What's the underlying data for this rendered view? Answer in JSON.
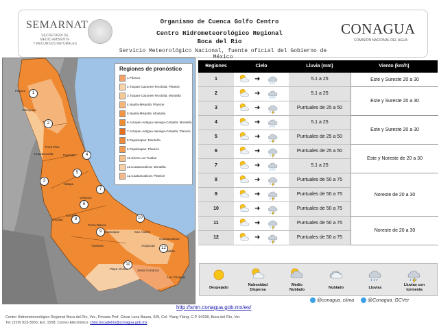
{
  "header": {
    "semarnat": "SEMARNAT",
    "semarnat_sub1": "SECRETARÍA DE",
    "semarnat_sub2": "MEDIO AMBIENTE",
    "semarnat_sub3": "Y RECURSOS NATURALES",
    "line1": "Organismo de Cuenca Golfo Centro",
    "line2": "Centro Hidrometeorológico Regional",
    "line3": "Boca del Río",
    "service1": "Servicio Meteorológico Nacional, fuente oficial del Gobierno de",
    "service2": "México",
    "conagua": "CONAGUA",
    "conagua_sub": "COMISIÓN NACIONAL DEL AGUA"
  },
  "legend": {
    "title": "Regiones de pronóstico",
    "items": [
      {
        "label": "1.Pánuco",
        "color": "#f3a36a"
      },
      {
        "label": "2.Tuxpan-Cazones-Tecolutla: Planicie",
        "color": "#f8d4a8"
      },
      {
        "label": "3.Tuxpan-Cazones-Tecolutla: Montaña",
        "color": "#f7c995"
      },
      {
        "label": "4.Nautla-Misantla: Planicie",
        "color": "#f6b67a"
      },
      {
        "label": "5.Nautla-Misantla: Montaña",
        "color": "#f19443"
      },
      {
        "label": "6.Actopan-Antigua-Jamapa-Cotaxtla: Montaña",
        "color": "#ee8c32"
      },
      {
        "label": "7.Actopan-Antigua-Jamapa-Cotaxtla: Planicie",
        "color": "#e86f1e"
      },
      {
        "label": "8.Papaloapan: Montaña",
        "color": "#f08a3a"
      },
      {
        "label": "9.Papaloapan: Planicie",
        "color": "#f29a4e"
      },
      {
        "label": "10.Sierra Los Tuxtlas",
        "color": "#f5c08a"
      },
      {
        "label": "11.Coatzacoalcos: Montaña",
        "color": "#f7cfa6"
      },
      {
        "label": "12.Coatzacoalcos: Planicie",
        "color": "#f4b98a"
      }
    ]
  },
  "map_labels": {
    "panuco": "Panuco",
    "tuxpan": "Tuxpan",
    "tantoyuca": "Tantoyuca",
    "poza_rica": "Poza Rica",
    "papantla": "Papantla",
    "huayacocotla": "Huayacocotla",
    "xalapa": "Xalapa",
    "veracruz": "Veracruz",
    "orizaba": "Orizaba",
    "cordoba": "Córdoba",
    "tierra_blanca": "Tierra Blanca",
    "cosamaloapan": "Cosamaloapan",
    "tuxtepec": "Tuxtepec",
    "san_andres": "San Andrés",
    "acayucan": "Acayucan",
    "coatzacoalcos": "Coatzacoalcos",
    "minatitlan": "Minatitlán",
    "las_choapas": "Las Choapas",
    "jesus_carranza": "Jesús Carranza",
    "playa_vicente": "Playa Vicente"
  },
  "table": {
    "headers": [
      "Regiones",
      "Cielo",
      "Lluvia (mm)",
      "Viento (km/h)"
    ],
    "rows": [
      {
        "region": "1",
        "sky_from": "sunny-partly-cloudy",
        "sky_to": "rain",
        "rain": "5.1 a 25"
      },
      {
        "region": "2",
        "sky_from": "sunny-partly-cloudy",
        "sky_to": "rain",
        "rain": "5.1 a 25"
      },
      {
        "region": "3",
        "sky_from": "sunny-partly-cloudy",
        "sky_to": "storm",
        "rain": "Puntuales de 25 a 50"
      },
      {
        "region": "4",
        "sky_from": "sunny-partly-cloudy",
        "sky_to": "rain",
        "rain": "5.1 a 25"
      },
      {
        "region": "5",
        "sky_from": "sunny-partly-cloudy",
        "sky_to": "storm",
        "rain": "Puntuales de 25 a 50"
      },
      {
        "region": "6",
        "sky_from": "sunny-partly-cloudy",
        "sky_to": "storm",
        "rain": "Puntuales de 25 a 50"
      },
      {
        "region": "7",
        "sky_from": "sunny-partly-cloudy",
        "sky_to": "rain",
        "rain": "5.1 a 25"
      },
      {
        "region": "8",
        "sky_from": "sunny-partly-cloudy",
        "sky_to": "storm",
        "rain": "Puntuales de 50 a 75"
      },
      {
        "region": "9",
        "sky_from": "sunny-partly-cloudy",
        "sky_to": "storm",
        "rain": "Puntuales de 50 a 75"
      },
      {
        "region": "10",
        "sky_from": "sunny-partly-cloudy",
        "sky_to": "storm",
        "rain": "Puntuales de 50 a 75"
      },
      {
        "region": "11",
        "sky_from": "sunny-partly-cloudy",
        "sky_to": "storm",
        "rain": "Puntuales de 50 a 75"
      },
      {
        "region": "12",
        "sky_from": "sunny-partly-cloudy",
        "sky_to": "storm",
        "rain": "Puntuales de 50 a 75"
      }
    ],
    "wind_groups": [
      {
        "label": "Este y Sureste 20 a 30"
      },
      {
        "label": "Este y Sureste 20 a 30"
      },
      {
        "label": "Este y Sureste 20 a 30"
      },
      {
        "label": "Este y Noreste de 20 a 30"
      },
      {
        "label": "Noreste de 20 a 30"
      },
      {
        "label": "Noreste de 20 a 30"
      }
    ]
  },
  "icon_legend": [
    {
      "label1": "Despejado",
      "label2": "",
      "icon": "sun-icon"
    },
    {
      "label1": "Nubosidad",
      "label2": "Dispersa",
      "icon": "scattered-clouds-icon"
    },
    {
      "label1": "Medio",
      "label2": "Nublado",
      "icon": "partly-cloudy-icon"
    },
    {
      "label1": "Nublado",
      "label2": "",
      "icon": "cloudy-icon"
    },
    {
      "label1": "Lluvias",
      "label2": "",
      "icon": "rain-icon"
    },
    {
      "label1": "Lluvias con",
      "label2": "tormenta",
      "icon": "storm-icon"
    }
  ],
  "footer": {
    "url": "http://smn.conagua.gob.mx/es/",
    "social1": "@conagua_clima",
    "social2": "@Conagua_GCVer",
    "address1": "Centro Hidrometeorológico Regional Boca del Río, Ver., Privada Prof. César Luna Bauza, S/N, Col. Ylang Ylang, C.P. 94298, Boca del Río, Ver.",
    "address2": "Tel: (229) 923-3950, Ext. 1558, Correo Electrónico: ",
    "email": "chmr.bocadelrio@conagua.gob.mx"
  }
}
